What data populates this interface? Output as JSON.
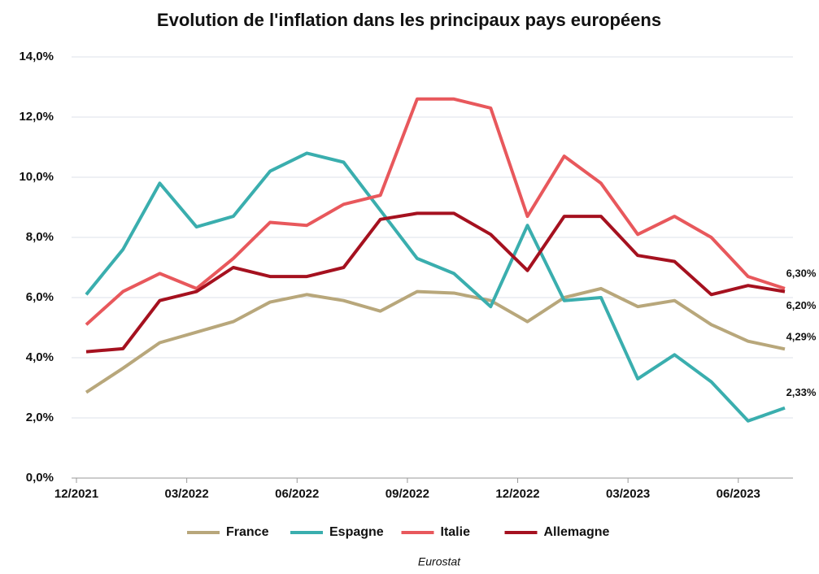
{
  "chart_data": {
    "type": "line",
    "title": "Evolution de l'inflation dans les principaux pays européens",
    "source": "Eurostat",
    "categories": [
      "12/2021",
      null,
      null,
      "03/2022",
      null,
      null,
      "06/2022",
      null,
      null,
      "09/2022",
      null,
      null,
      "12/2022",
      null,
      null,
      "03/2023",
      null,
      null,
      "06/2023",
      null
    ],
    "series": [
      {
        "name": "France",
        "color": "#b8a77b",
        "values": [
          2.85,
          3.65,
          4.5,
          4.85,
          5.2,
          5.85,
          6.1,
          5.9,
          5.55,
          6.2,
          6.15,
          5.9,
          5.2,
          6.0,
          6.3,
          5.7,
          5.9,
          5.1,
          4.55,
          4.29
        ],
        "value_labels": [
          null,
          null,
          null,
          null,
          null,
          null,
          null,
          null,
          null,
          null,
          null,
          null,
          null,
          null,
          null,
          null,
          null,
          null,
          null,
          "4,29%"
        ]
      },
      {
        "name": "Espagne",
        "color": "#3aaeae",
        "values": [
          6.1,
          7.6,
          9.8,
          8.35,
          8.7,
          10.2,
          10.8,
          10.5,
          8.9,
          7.3,
          6.8,
          5.7,
          8.4,
          5.9,
          6.0,
          3.3,
          4.1,
          3.2,
          1.9,
          2.33
        ],
        "value_labels": [
          null,
          null,
          null,
          null,
          null,
          null,
          null,
          null,
          null,
          null,
          null,
          null,
          null,
          null,
          null,
          null,
          null,
          null,
          null,
          "2,33%"
        ]
      },
      {
        "name": "Italie",
        "color": "#e8585c",
        "values": [
          5.1,
          6.2,
          6.8,
          6.3,
          7.3,
          8.5,
          8.4,
          9.1,
          9.4,
          12.6,
          12.6,
          12.3,
          8.7,
          10.7,
          9.8,
          8.1,
          8.7,
          8.0,
          6.7,
          6.3
        ],
        "value_labels": [
          null,
          null,
          null,
          null,
          null,
          null,
          null,
          null,
          null,
          null,
          null,
          null,
          null,
          null,
          null,
          null,
          null,
          null,
          null,
          "6,30%"
        ]
      },
      {
        "name": "Allemagne",
        "color": "#a5111f",
        "values": [
          4.2,
          4.3,
          5.9,
          6.2,
          7.0,
          6.7,
          6.7,
          7.0,
          8.6,
          8.8,
          8.8,
          8.1,
          6.9,
          8.7,
          8.7,
          7.4,
          7.2,
          6.1,
          6.4,
          6.2
        ],
        "value_labels": [
          null,
          null,
          null,
          null,
          null,
          null,
          null,
          null,
          null,
          null,
          null,
          null,
          null,
          null,
          null,
          null,
          null,
          null,
          null,
          "6,20%"
        ]
      }
    ],
    "ylim": [
      0,
      14
    ],
    "yticks": [
      {
        "value": 0,
        "label": "0,0%"
      },
      {
        "value": 2,
        "label": "2,0%"
      },
      {
        "value": 4,
        "label": "4,0%"
      },
      {
        "value": 6,
        "label": "6,0%"
      },
      {
        "value": 8,
        "label": "8,0%"
      },
      {
        "value": 10,
        "label": "10,0%"
      },
      {
        "value": 12,
        "label": "12,0%"
      },
      {
        "value": 14,
        "label": "14,0%"
      }
    ],
    "grid": true,
    "legend": "bottom"
  }
}
